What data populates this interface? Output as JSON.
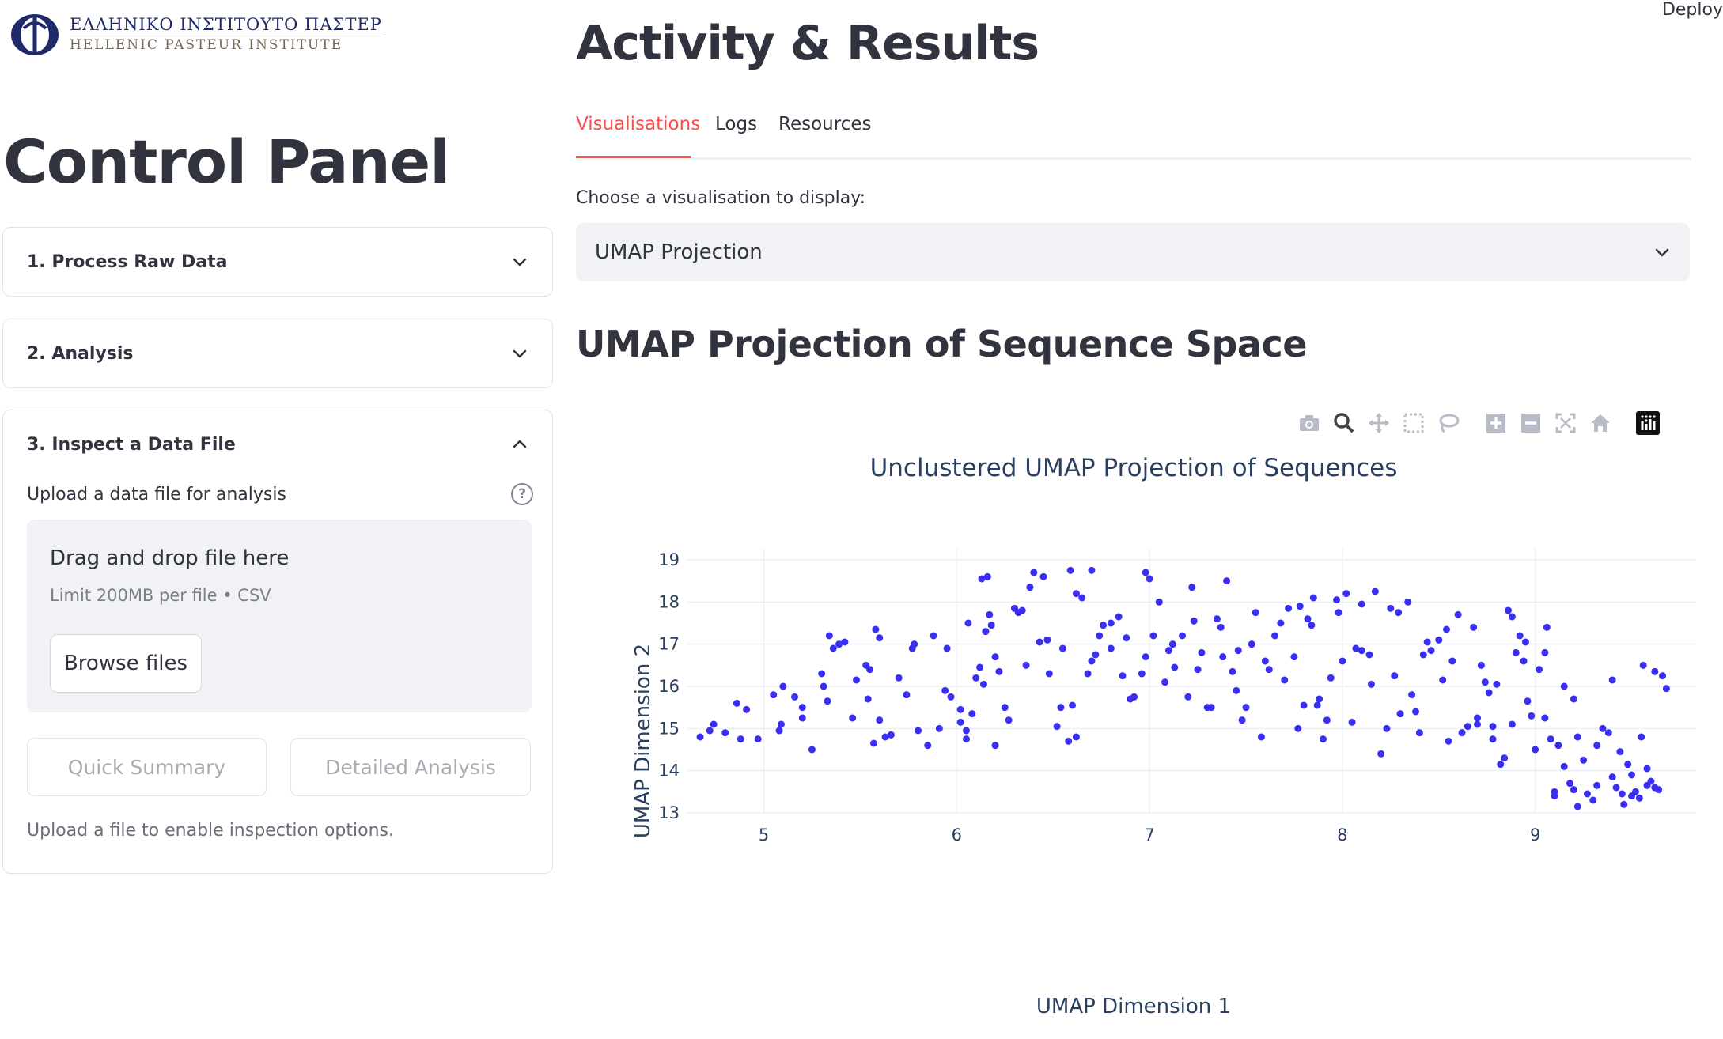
{
  "header": {
    "deploy_label": "Deploy"
  },
  "logo": {
    "greek_text": "ΕΛΛΗΝΙΚΟ ΙΝΣΤΙΤΟΥΤΟ ΠΑΣΤΕΡ",
    "english_text": "HELLENIC PASTEUR INSTITUTE"
  },
  "sidebar": {
    "title": "Control Panel",
    "expanders": [
      {
        "label": "1. Process Raw Data",
        "expanded": false
      },
      {
        "label": "2. Analysis",
        "expanded": false
      },
      {
        "label": "3. Inspect a Data File",
        "expanded": true
      }
    ],
    "upload": {
      "label": "Upload a data file for analysis",
      "help_icon": "?",
      "drop_text": "Drag and drop file here",
      "limit_text": "Limit 200MB per file • CSV",
      "browse_label": "Browse files"
    },
    "quick_summary_label": "Quick Summary",
    "detailed_analysis_label": "Detailed Analysis",
    "hint": "Upload a file to enable inspection options."
  },
  "main": {
    "title": "Activity & Results",
    "tabs": [
      {
        "label": "Visualisations",
        "active": true
      },
      {
        "label": "Logs",
        "active": false
      },
      {
        "label": "Resources",
        "active": false
      }
    ],
    "choose_label": "Choose a visualisation to display:",
    "selected_visualisation": "UMAP Projection",
    "section_title": "UMAP Projection of Sequence Space",
    "modebar_icons": [
      "camera-icon",
      "zoom-icon",
      "pan-icon",
      "box-select-icon",
      "lasso-icon",
      "zoom-in-icon",
      "zoom-out-icon",
      "autoscale-icon",
      "reset-axes-icon",
      "plotly-logo-icon"
    ]
  },
  "colors": {
    "accent": "#ff4b4b",
    "marker": "#3a2ff0",
    "text": "#31333f"
  },
  "chart_data": {
    "type": "scatter",
    "title": "Unclustered UMAP Projection of Sequences",
    "xlabel": "UMAP Dimension 1",
    "ylabel": "UMAP Dimension 2",
    "xlim": [
      4.6,
      9.83
    ],
    "ylim": [
      13.0,
      19.0
    ],
    "xticks": [
      5,
      6,
      7,
      8,
      9
    ],
    "yticks": [
      13,
      14,
      15,
      16,
      17,
      18,
      19
    ],
    "grid": true,
    "points": [
      [
        4.67,
        14.8
      ],
      [
        4.72,
        14.95
      ],
      [
        4.74,
        15.1
      ],
      [
        4.8,
        14.9
      ],
      [
        4.86,
        15.6
      ],
      [
        4.88,
        14.75
      ],
      [
        4.91,
        15.45
      ],
      [
        4.97,
        14.75
      ],
      [
        5.05,
        15.8
      ],
      [
        5.09,
        15.1
      ],
      [
        5.08,
        14.95
      ],
      [
        5.1,
        16.0
      ],
      [
        5.16,
        15.75
      ],
      [
        5.2,
        15.25
      ],
      [
        5.2,
        15.5
      ],
      [
        5.25,
        14.5
      ],
      [
        5.31,
        16.0
      ],
      [
        5.3,
        16.3
      ],
      [
        5.33,
        15.65
      ],
      [
        5.36,
        16.9
      ],
      [
        5.34,
        17.2
      ],
      [
        5.39,
        17.0
      ],
      [
        5.42,
        17.05
      ],
      [
        5.46,
        15.25
      ],
      [
        5.48,
        16.15
      ],
      [
        5.53,
        16.5
      ],
      [
        5.55,
        16.4
      ],
      [
        5.54,
        15.7
      ],
      [
        5.58,
        17.35
      ],
      [
        5.6,
        17.15
      ],
      [
        5.6,
        15.2
      ],
      [
        5.57,
        14.65
      ],
      [
        5.63,
        14.8
      ],
      [
        5.66,
        14.85
      ],
      [
        5.7,
        16.2
      ],
      [
        5.74,
        15.8
      ],
      [
        5.77,
        16.9
      ],
      [
        5.78,
        17.0
      ],
      [
        5.8,
        14.95
      ],
      [
        5.85,
        14.6
      ],
      [
        5.88,
        17.2
      ],
      [
        5.91,
        15.0
      ],
      [
        5.95,
        16.9
      ],
      [
        5.94,
        15.9
      ],
      [
        5.97,
        15.75
      ],
      [
        6.02,
        15.45
      ],
      [
        6.02,
        15.15
      ],
      [
        6.05,
        14.95
      ],
      [
        6.05,
        14.75
      ],
      [
        6.06,
        17.5
      ],
      [
        6.08,
        15.35
      ],
      [
        6.1,
        16.2
      ],
      [
        6.12,
        16.45
      ],
      [
        6.14,
        16.05
      ],
      [
        6.15,
        17.3
      ],
      [
        6.17,
        17.7
      ],
      [
        6.2,
        16.7
      ],
      [
        6.13,
        18.55
      ],
      [
        6.16,
        18.6
      ],
      [
        6.18,
        17.45
      ],
      [
        6.2,
        14.6
      ],
      [
        6.22,
        16.35
      ],
      [
        6.25,
        15.5
      ],
      [
        6.27,
        15.2
      ],
      [
        6.3,
        17.85
      ],
      [
        6.32,
        17.75
      ],
      [
        6.34,
        17.8
      ],
      [
        6.36,
        16.5
      ],
      [
        6.38,
        18.35
      ],
      [
        6.4,
        18.7
      ],
      [
        6.43,
        17.05
      ],
      [
        6.45,
        18.6
      ],
      [
        6.47,
        17.1
      ],
      [
        6.48,
        16.3
      ],
      [
        6.52,
        15.05
      ],
      [
        6.54,
        15.5
      ],
      [
        6.55,
        16.9
      ],
      [
        6.58,
        14.7
      ],
      [
        6.6,
        15.55
      ],
      [
        6.62,
        14.8
      ],
      [
        6.59,
        18.75
      ],
      [
        6.62,
        18.2
      ],
      [
        6.65,
        18.1
      ],
      [
        6.68,
        16.3
      ],
      [
        6.7,
        16.6
      ],
      [
        6.72,
        16.75
      ],
      [
        6.74,
        17.2
      ],
      [
        6.76,
        17.45
      ],
      [
        6.7,
        18.75
      ],
      [
        6.8,
        17.5
      ],
      [
        6.8,
        16.9
      ],
      [
        6.84,
        17.65
      ],
      [
        6.86,
        16.25
      ],
      [
        6.88,
        17.15
      ],
      [
        6.9,
        15.7
      ],
      [
        6.92,
        15.75
      ],
      [
        6.96,
        16.3
      ],
      [
        6.98,
        16.7
      ],
      [
        7.02,
        17.2
      ],
      [
        7.05,
        18.0
      ],
      [
        6.98,
        18.7
      ],
      [
        7.0,
        18.55
      ],
      [
        7.08,
        16.1
      ],
      [
        7.1,
        16.85
      ],
      [
        7.12,
        17.0
      ],
      [
        7.13,
        16.45
      ],
      [
        7.17,
        17.2
      ],
      [
        7.2,
        15.75
      ],
      [
        7.22,
        18.35
      ],
      [
        7.23,
        17.55
      ],
      [
        7.25,
        16.4
      ],
      [
        7.27,
        16.8
      ],
      [
        7.3,
        15.5
      ],
      [
        7.32,
        15.5
      ],
      [
        7.35,
        17.6
      ],
      [
        7.37,
        17.4
      ],
      [
        7.38,
        16.7
      ],
      [
        7.4,
        18.5
      ],
      [
        7.43,
        16.35
      ],
      [
        7.45,
        15.9
      ],
      [
        7.46,
        16.85
      ],
      [
        7.48,
        15.2
      ],
      [
        7.5,
        15.5
      ],
      [
        7.53,
        17.0
      ],
      [
        7.55,
        17.75
      ],
      [
        7.58,
        14.8
      ],
      [
        7.6,
        16.6
      ],
      [
        7.62,
        16.4
      ],
      [
        7.65,
        17.2
      ],
      [
        7.68,
        17.5
      ],
      [
        7.7,
        16.15
      ],
      [
        7.72,
        17.85
      ],
      [
        7.75,
        16.7
      ],
      [
        7.77,
        15.0
      ],
      [
        7.78,
        17.9
      ],
      [
        7.8,
        15.55
      ],
      [
        7.82,
        17.6
      ],
      [
        7.84,
        17.45
      ],
      [
        7.85,
        18.1
      ],
      [
        7.87,
        15.55
      ],
      [
        7.88,
        15.7
      ],
      [
        7.9,
        14.75
      ],
      [
        7.92,
        15.2
      ],
      [
        7.94,
        16.2
      ],
      [
        7.97,
        18.05
      ],
      [
        7.98,
        17.75
      ],
      [
        8.0,
        16.6
      ],
      [
        8.02,
        18.2
      ],
      [
        8.05,
        15.15
      ],
      [
        8.07,
        16.9
      ],
      [
        8.1,
        16.85
      ],
      [
        8.14,
        16.75
      ],
      [
        8.1,
        17.95
      ],
      [
        8.15,
        16.05
      ],
      [
        8.17,
        18.25
      ],
      [
        8.2,
        14.4
      ],
      [
        8.23,
        15.0
      ],
      [
        8.25,
        17.85
      ],
      [
        8.27,
        16.25
      ],
      [
        8.29,
        17.75
      ],
      [
        8.3,
        15.35
      ],
      [
        8.34,
        18.0
      ],
      [
        8.36,
        15.8
      ],
      [
        8.38,
        15.4
      ],
      [
        8.4,
        14.9
      ],
      [
        8.42,
        16.75
      ],
      [
        8.44,
        17.05
      ],
      [
        8.46,
        16.85
      ],
      [
        8.5,
        17.1
      ],
      [
        8.52,
        16.15
      ],
      [
        8.54,
        17.35
      ],
      [
        8.55,
        14.7
      ],
      [
        8.57,
        16.6
      ],
      [
        8.6,
        17.7
      ],
      [
        8.62,
        14.9
      ],
      [
        8.65,
        15.05
      ],
      [
        8.68,
        17.4
      ],
      [
        8.7,
        15.25
      ],
      [
        8.72,
        16.5
      ],
      [
        8.74,
        16.1
      ],
      [
        8.76,
        15.85
      ],
      [
        8.78,
        14.75
      ],
      [
        8.8,
        16.05
      ],
      [
        8.82,
        14.15
      ],
      [
        8.84,
        14.3
      ],
      [
        8.86,
        17.8
      ],
      [
        8.88,
        17.65
      ],
      [
        8.9,
        16.8
      ],
      [
        8.92,
        17.2
      ],
      [
        8.94,
        16.6
      ],
      [
        8.96,
        15.65
      ],
      [
        8.98,
        15.3
      ],
      [
        9.0,
        14.5
      ],
      [
        9.02,
        16.4
      ],
      [
        9.05,
        15.25
      ],
      [
        9.06,
        17.4
      ],
      [
        9.08,
        14.75
      ],
      [
        9.1,
        13.5
      ],
      [
        9.12,
        14.6
      ],
      [
        9.15,
        14.1
      ],
      [
        9.18,
        13.7
      ],
      [
        9.2,
        13.55
      ],
      [
        9.22,
        14.8
      ],
      [
        9.25,
        14.25
      ],
      [
        9.27,
        13.45
      ],
      [
        9.3,
        13.3
      ],
      [
        9.32,
        13.65
      ],
      [
        9.35,
        15.0
      ],
      [
        9.38,
        14.9
      ],
      [
        9.4,
        13.85
      ],
      [
        9.42,
        13.6
      ],
      [
        9.44,
        14.45
      ],
      [
        9.46,
        13.2
      ],
      [
        9.48,
        14.15
      ],
      [
        9.5,
        13.9
      ],
      [
        9.52,
        13.5
      ],
      [
        9.54,
        13.35
      ],
      [
        9.56,
        16.5
      ],
      [
        9.58,
        14.05
      ],
      [
        9.6,
        13.75
      ],
      [
        9.62,
        16.35
      ],
      [
        9.64,
        13.55
      ],
      [
        9.66,
        16.25
      ],
      [
        9.68,
        15.95
      ],
      [
        9.55,
        14.8
      ],
      [
        8.7,
        15.1
      ],
      [
        8.78,
        15.05
      ],
      [
        9.15,
        16.0
      ],
      [
        9.2,
        15.7
      ],
      [
        8.95,
        17.05
      ],
      [
        9.05,
        16.8
      ],
      [
        9.4,
        16.15
      ],
      [
        9.45,
        13.45
      ],
      [
        9.5,
        13.4
      ],
      [
        9.62,
        13.6
      ],
      [
        9.58,
        13.65
      ],
      [
        9.32,
        14.6
      ],
      [
        8.88,
        15.1
      ],
      [
        9.1,
        13.4
      ],
      [
        9.22,
        13.15
      ]
    ]
  }
}
